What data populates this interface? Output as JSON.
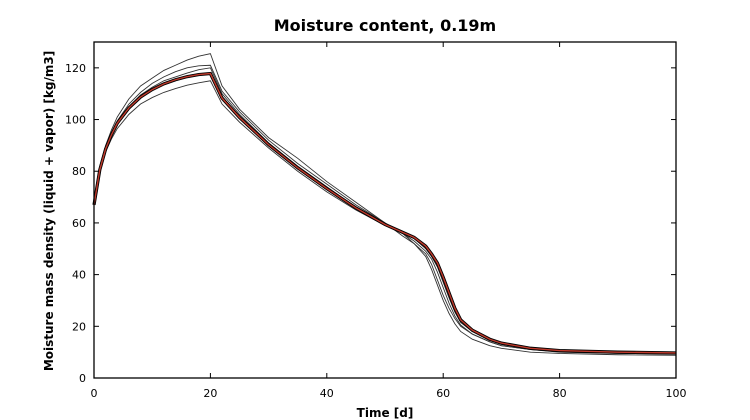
{
  "chart_data": {
    "type": "line",
    "title": "Moisture content, 0.19m",
    "xlabel": "Time [d]",
    "ylabel": "Moisture mass density (liquid + vapor) [kg/m3]",
    "xlim": [
      0,
      100
    ],
    "ylim": [
      0,
      130
    ],
    "xticks": [
      "0",
      "20",
      "40",
      "60",
      "80",
      "100"
    ],
    "yticks": [
      "0",
      "20",
      "40",
      "60",
      "80",
      "100",
      "120"
    ],
    "grid": false,
    "legend": "none",
    "series_colors": {
      "ensemble": "#333333",
      "highlight_fill": "#c0392b",
      "highlight_edge": "#000000"
    },
    "series": [
      {
        "x": [
          0,
          1,
          2,
          3,
          4,
          6,
          8,
          10,
          12,
          14,
          16,
          18,
          20,
          22,
          25,
          30,
          35,
          40,
          45,
          50,
          53,
          55,
          57,
          58,
          59,
          60,
          61,
          62,
          63,
          65,
          68,
          70,
          75,
          80,
          90,
          100
        ],
        "y": [
          67,
          82,
          90,
          96,
          101,
          108,
          113,
          116,
          119,
          121,
          123,
          124.5,
          125.5,
          113,
          104,
          93,
          85,
          76,
          68,
          60,
          55,
          52,
          47,
          42,
          36,
          30,
          25,
          21,
          18,
          15,
          12.5,
          11.5,
          10,
          9.5,
          9,
          8.8
        ]
      },
      {
        "x": [
          0,
          1,
          2,
          3,
          4,
          6,
          8,
          10,
          12,
          14,
          16,
          18,
          20,
          22,
          25,
          30,
          35,
          40,
          45,
          50,
          53,
          55,
          57,
          58,
          59,
          60,
          61,
          62,
          63,
          65,
          68,
          70,
          75,
          80,
          90,
          100
        ],
        "y": [
          67,
          81.5,
          89.5,
          95,
          99.5,
          106,
          110.5,
          114,
          116.5,
          118.5,
          120,
          120.8,
          121,
          111,
          103,
          92,
          83,
          75,
          67,
          60,
          56,
          52,
          48,
          44,
          38,
          32,
          27,
          23,
          20,
          17,
          14,
          12.5,
          11,
          10,
          9.5,
          9.3
        ]
      },
      {
        "x": [
          0,
          1,
          2,
          3,
          4,
          6,
          8,
          10,
          12,
          14,
          16,
          18,
          20,
          22,
          25,
          30,
          35,
          40,
          45,
          50,
          53,
          55,
          57,
          58,
          59,
          60,
          61,
          62,
          63,
          65,
          68,
          70,
          75,
          80,
          90,
          100
        ],
        "y": [
          67,
          81,
          89,
          94.5,
          99,
          105,
          109.5,
          112.5,
          115,
          116.5,
          118,
          119.3,
          120,
          110,
          102,
          91,
          82,
          74,
          66,
          59.5,
          56,
          53,
          49,
          46,
          41,
          35,
          29,
          24,
          20.5,
          17,
          14,
          12.5,
          11,
          10.2,
          9.6,
          9.5
        ]
      },
      {
        "x": [
          0,
          1,
          2,
          3,
          4,
          6,
          8,
          10,
          12,
          14,
          16,
          18,
          20,
          22,
          25,
          30,
          35,
          40,
          45,
          50,
          53,
          55,
          57,
          58,
          59,
          60,
          61,
          62,
          63,
          65,
          68,
          70,
          75,
          80,
          90,
          100
        ],
        "y": [
          67,
          80.5,
          88.5,
          94,
          98.5,
          104.5,
          108.5,
          111.5,
          113.5,
          115,
          116.5,
          117.4,
          118,
          109,
          101,
          90,
          81,
          73,
          66,
          59.5,
          56.5,
          54.5,
          51,
          48,
          44,
          38,
          32,
          26,
          22,
          18,
          14.5,
          13,
          11.2,
          10.5,
          10,
          9.8
        ]
      },
      {
        "x": [
          0,
          1,
          2,
          3,
          4,
          6,
          8,
          10,
          12,
          14,
          16,
          18,
          20,
          22,
          25,
          30,
          35,
          40,
          45,
          50,
          53,
          55,
          57,
          58,
          59,
          60,
          61,
          62,
          63,
          65,
          68,
          70,
          75,
          80,
          90,
          100
        ],
        "y": [
          67,
          80,
          87.5,
          92.5,
          96.5,
          102,
          106,
          108.5,
          110.5,
          112,
          113.3,
          114.2,
          115,
          106,
          99,
          89,
          80,
          72,
          65,
          59,
          56,
          54,
          50,
          47,
          43,
          37,
          31,
          25.5,
          21.5,
          18,
          15,
          13.5,
          11.5,
          10.8,
          10.2,
          10
        ]
      },
      {
        "x": [
          0,
          1,
          2,
          3,
          4,
          6,
          8,
          10,
          12,
          14,
          16,
          18,
          20,
          22,
          25,
          30,
          35,
          40,
          45,
          50,
          53,
          55,
          57,
          58,
          59,
          60,
          61,
          62,
          63,
          65,
          68,
          70,
          75,
          80,
          90,
          100
        ],
        "y": [
          67,
          80.7,
          88.7,
          94.2,
          98.7,
          104.6,
          108.8,
          111.8,
          114,
          115.6,
          116.8,
          117.6,
          118,
          108.5,
          101,
          90.5,
          81.5,
          73.5,
          66,
          59.5,
          56.5,
          54.5,
          51,
          48,
          44.5,
          39,
          33,
          27,
          22.5,
          18.5,
          15,
          13.5,
          11.5,
          10.6,
          10,
          9.7
        ]
      },
      {
        "x": [
          0,
          1,
          2,
          3,
          4,
          6,
          8,
          10,
          12,
          14,
          16,
          18,
          20,
          22,
          25,
          30,
          35,
          40,
          45,
          50,
          53,
          55,
          57,
          58,
          59,
          60,
          61,
          62,
          63,
          65,
          68,
          70,
          75,
          80,
          90,
          100
        ],
        "y": [
          67,
          80.6,
          88.6,
          94.1,
          98.6,
          104.5,
          108.7,
          111.6,
          113.8,
          115.4,
          116.6,
          117.4,
          117.8,
          108.3,
          100.8,
          90.3,
          81.3,
          73.3,
          65.8,
          59.4,
          56.4,
          54.4,
          51,
          48,
          44.5,
          39,
          33,
          27,
          22.5,
          18.5,
          15,
          13.5,
          11.5,
          10.6,
          10,
          9.7
        ]
      }
    ],
    "highlight_series_index": 6
  }
}
